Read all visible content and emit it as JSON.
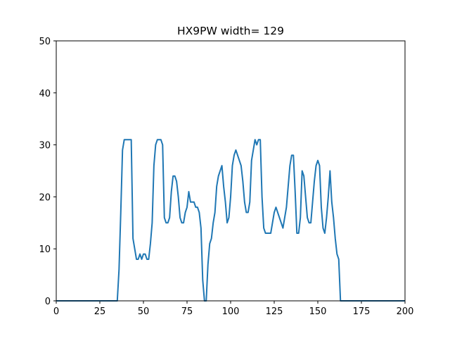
{
  "chart_data": {
    "type": "line",
    "title": "HX9PW width= 129",
    "x": [
      0,
      35,
      36,
      37,
      38,
      39,
      40,
      41,
      42,
      43,
      44,
      45,
      46,
      47,
      48,
      49,
      50,
      51,
      52,
      53,
      54,
      55,
      56,
      57,
      58,
      59,
      60,
      61,
      62,
      63,
      64,
      65,
      66,
      67,
      68,
      69,
      70,
      71,
      72,
      73,
      74,
      75,
      76,
      77,
      78,
      79,
      80,
      81,
      82,
      83,
      84,
      85,
      86,
      87,
      88,
      89,
      90,
      91,
      92,
      93,
      94,
      95,
      96,
      97,
      98,
      99,
      100,
      101,
      102,
      103,
      104,
      105,
      106,
      107,
      108,
      109,
      110,
      111,
      112,
      113,
      114,
      115,
      116,
      117,
      118,
      119,
      120,
      121,
      122,
      123,
      124,
      125,
      126,
      127,
      128,
      129,
      130,
      131,
      132,
      133,
      134,
      135,
      136,
      137,
      138,
      139,
      140,
      141,
      142,
      143,
      144,
      145,
      146,
      147,
      148,
      149,
      150,
      151,
      152,
      153,
      154,
      155,
      156,
      157,
      158,
      159,
      160,
      161,
      162,
      163,
      200
    ],
    "series": [
      {
        "color": "#1f77b4",
        "values": [
          0,
          0,
          6,
          17,
          29,
          31,
          31,
          31,
          31,
          31,
          12,
          10,
          8,
          8,
          9,
          8,
          9,
          9,
          8,
          8,
          11,
          15,
          26,
          30,
          31,
          31,
          31,
          30,
          16,
          15,
          15,
          16,
          21,
          24,
          24,
          23,
          20,
          16,
          15,
          15,
          17,
          18,
          21,
          19,
          19,
          19,
          18,
          18,
          17,
          14,
          4,
          0,
          0,
          7,
          11,
          12,
          15,
          17,
          22,
          24,
          25,
          26,
          22,
          19,
          15,
          16,
          20,
          26,
          28,
          29,
          28,
          27,
          26,
          23,
          19,
          17,
          17,
          19,
          27,
          29,
          31,
          30,
          31,
          31,
          20,
          14,
          13,
          13,
          13,
          13,
          15,
          17,
          18,
          17,
          16,
          15,
          14,
          16,
          18,
          22,
          26,
          28,
          28,
          21,
          13,
          13,
          16,
          25,
          24,
          20,
          16,
          15,
          15,
          19,
          23,
          26,
          27,
          26,
          18,
          14,
          13,
          16,
          20,
          25,
          19,
          16,
          12,
          9,
          8,
          0,
          0
        ]
      }
    ],
    "xlim": [
      0,
      200
    ],
    "ylim": [
      0,
      50
    ],
    "xticks": [
      0,
      25,
      50,
      75,
      100,
      125,
      150,
      175,
      200
    ],
    "yticks": [
      0,
      10,
      20,
      30,
      40,
      50
    ]
  }
}
